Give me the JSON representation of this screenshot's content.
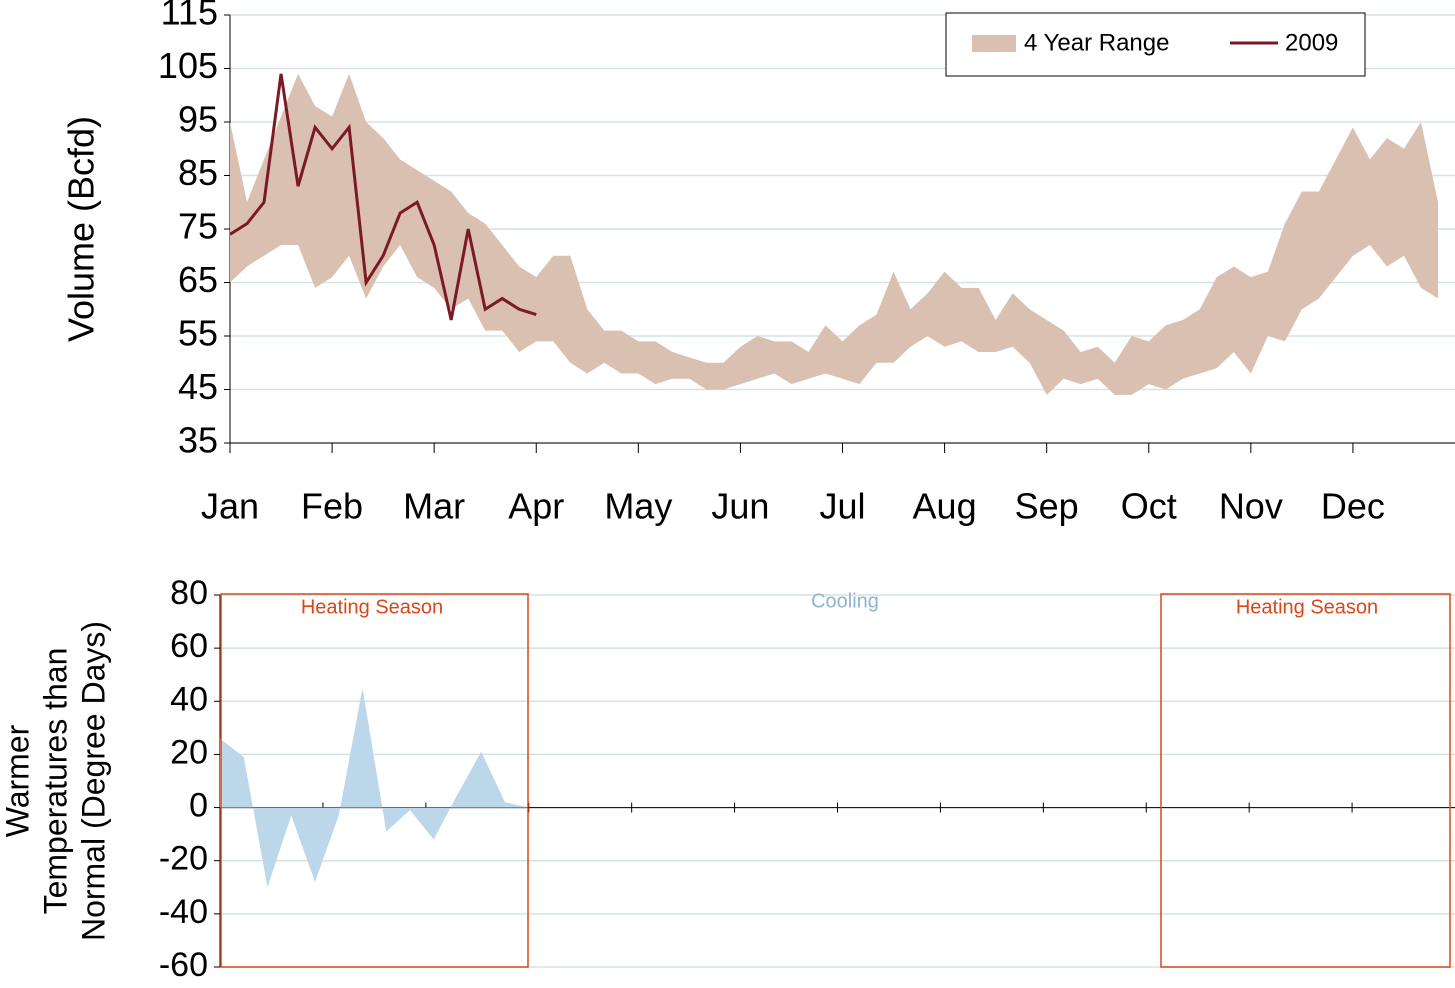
{
  "chart_data": [
    {
      "type": "line",
      "y_label": "Volume (Bcfd)",
      "categories": [
        "Jan",
        null,
        null,
        null,
        null,
        null,
        "Feb",
        null,
        null,
        null,
        null,
        null,
        "Mar",
        null,
        null,
        null,
        null,
        null,
        "Apr",
        null,
        null,
        null,
        null,
        null,
        "May",
        null,
        null,
        null,
        null,
        null,
        "Jun",
        null,
        null,
        null,
        null,
        null,
        "Jul",
        null,
        null,
        null,
        null,
        null,
        "Aug",
        null,
        null,
        null,
        null,
        null,
        "Sep",
        null,
        null,
        null,
        null,
        null,
        "Oct",
        null,
        null,
        null,
        null,
        null,
        "Nov",
        null,
        null,
        null,
        null,
        null,
        "Dec",
        null,
        null,
        null,
        null,
        null
      ],
      "series": [
        {
          "name": "4 Year Range",
          "color": "#d9c0b1",
          "low": [
            65,
            68,
            70,
            72,
            72,
            64,
            66,
            70,
            62,
            68,
            72,
            66,
            64,
            60,
            62,
            56,
            56,
            52,
            54,
            54,
            50,
            48,
            50,
            48,
            48,
            46,
            47,
            47,
            45,
            45,
            46,
            47,
            48,
            46,
            47,
            48,
            47,
            46,
            50,
            50,
            53,
            55,
            53,
            54,
            52,
            52,
            53,
            50,
            44,
            47,
            46,
            47,
            44,
            44,
            46,
            45,
            47,
            48,
            49,
            52,
            48,
            55,
            54,
            60,
            62,
            66,
            70,
            72,
            68,
            70,
            64,
            62
          ],
          "high": [
            95,
            80,
            88,
            96,
            104,
            98,
            96,
            104,
            95,
            92,
            88,
            86,
            84,
            82,
            78,
            76,
            72,
            68,
            66,
            70,
            70,
            60,
            56,
            56,
            54,
            54,
            52,
            51,
            50,
            50,
            53,
            55,
            54,
            54,
            52,
            57,
            54,
            57,
            59,
            67,
            60,
            63,
            67,
            64,
            64,
            58,
            63,
            60,
            58,
            56,
            52,
            53,
            50,
            55,
            54,
            57,
            58,
            60,
            66,
            68,
            66,
            67,
            76,
            82,
            82,
            88,
            94,
            88,
            92,
            90,
            95,
            80
          ]
        },
        {
          "name": "2009",
          "color": "#7b1a24",
          "values": [
            74,
            76,
            80,
            104,
            83,
            94,
            90,
            94,
            65,
            70,
            78,
            80,
            72,
            58,
            75,
            60,
            62,
            60,
            59,
            null,
            null,
            null,
            null,
            null,
            null,
            null,
            null,
            null,
            null,
            null,
            null,
            null,
            null,
            null,
            null,
            null,
            null,
            null,
            null,
            null,
            null,
            null,
            null,
            null,
            null,
            null,
            null,
            null,
            null,
            null,
            null,
            null,
            null,
            null,
            null,
            null,
            null,
            null,
            null,
            null,
            null,
            null,
            null,
            null,
            null,
            null,
            null,
            null,
            null,
            null,
            null,
            null
          ]
        }
      ],
      "ylim": [
        35,
        115
      ],
      "yticks": [
        35,
        45,
        55,
        65,
        75,
        85,
        95,
        105,
        115
      ],
      "grid": true,
      "legend": "upper right"
    },
    {
      "type": "area",
      "y_label": [
        "Warmer",
        "Temperatures than",
        "Normal (Degree Days)"
      ],
      "x": [
        0,
        1,
        2,
        3,
        4,
        5,
        6,
        7,
        8,
        9,
        10,
        11,
        12,
        13
      ],
      "values": [
        26,
        19,
        -30,
        -3,
        -28,
        -3,
        45,
        -9,
        -1,
        -12,
        5,
        21,
        2,
        0
      ],
      "color": "#bdd7ea",
      "xlim": [
        0,
        52
      ],
      "ylim": [
        -60,
        80
      ],
      "yticks": [
        -60,
        -40,
        -20,
        0,
        20,
        40,
        60,
        80
      ],
      "grid": true,
      "annotations": [
        {
          "text": "Heating Season",
          "color": "#d9481b"
        },
        {
          "text": "Cooling",
          "color": "#8fb4cc"
        },
        {
          "text": "Heating Season",
          "color": "#d9481b"
        }
      ]
    }
  ]
}
